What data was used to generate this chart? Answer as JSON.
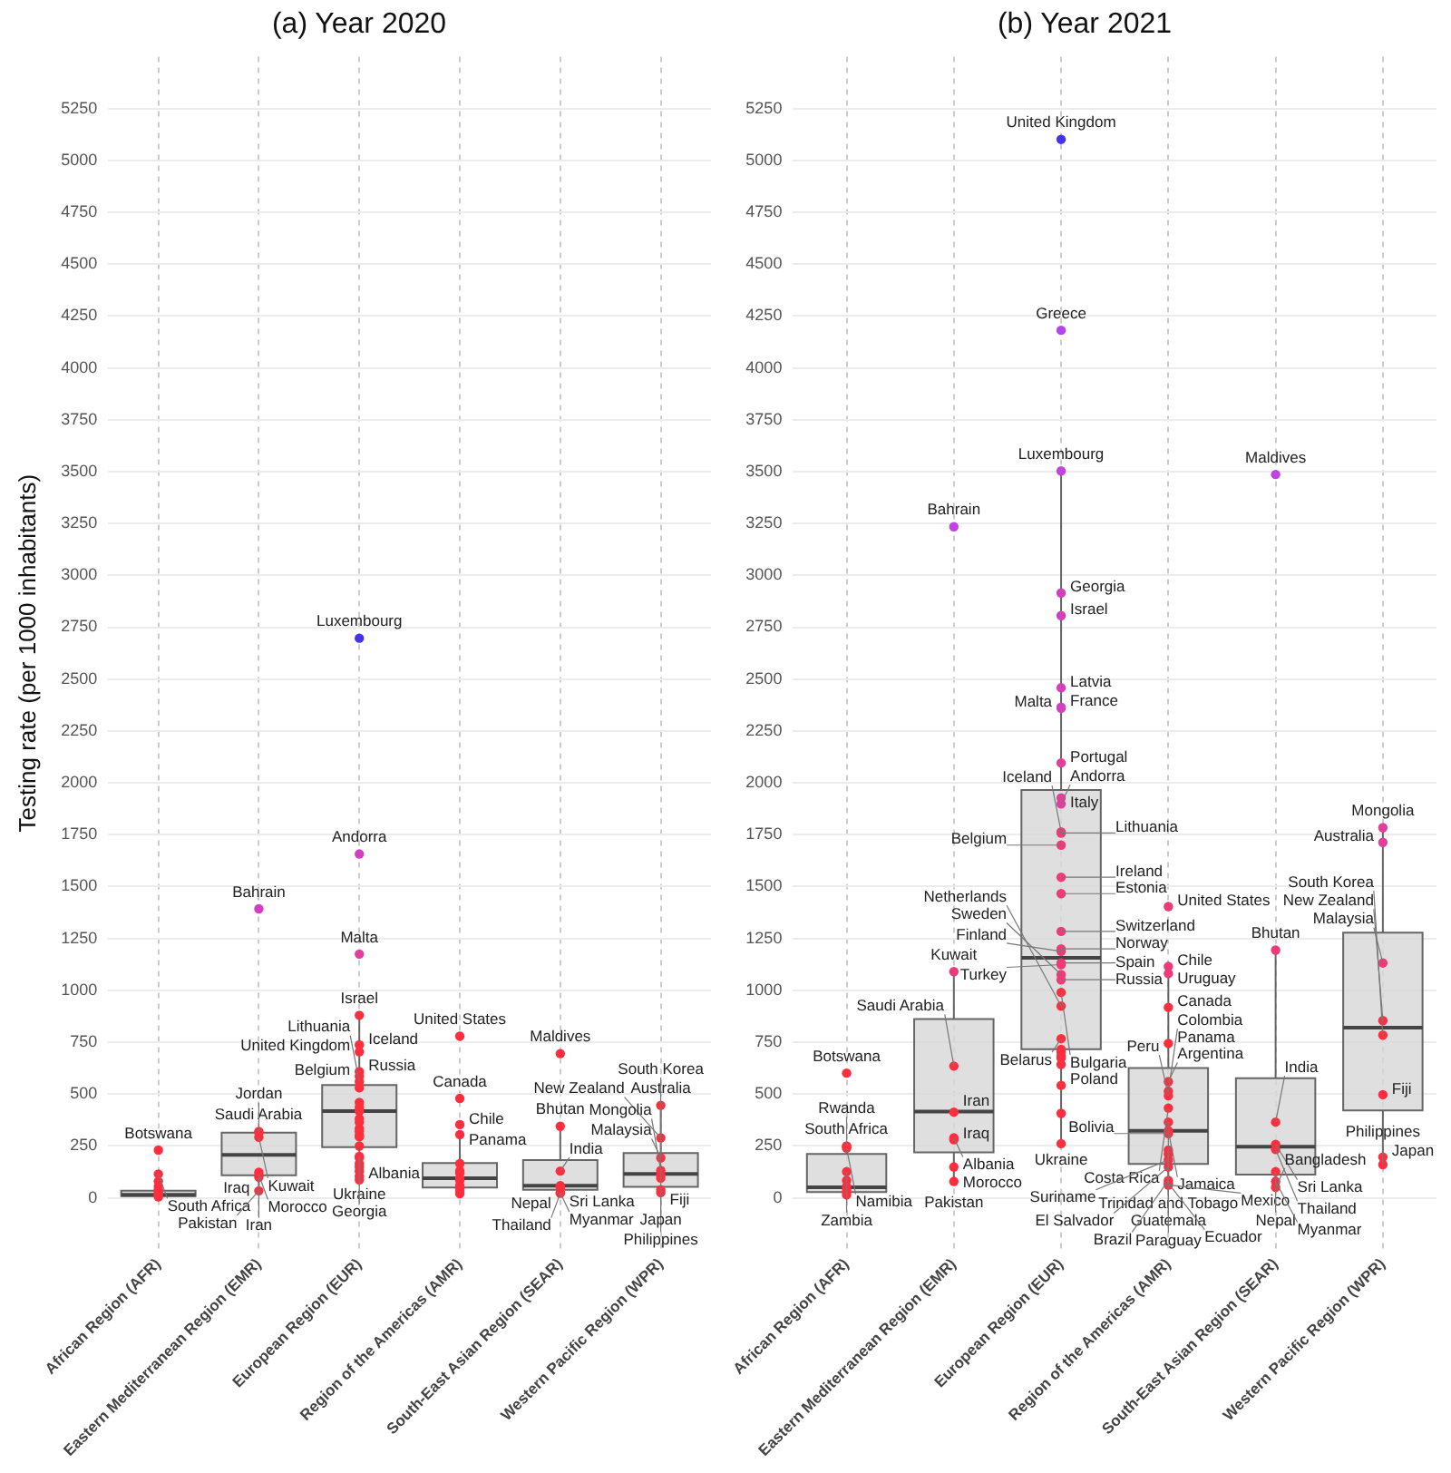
{
  "chart_data": [
    {
      "type": "box",
      "title": "(a) Year 2020",
      "ylabel": "Testing rate (per 1000 inhabitants)",
      "categories": [
        "African Region (AFR)",
        "Eastern Mediterranean Region (EMR)",
        "European Region (EUR)",
        "Region of the Americas (AMR)",
        "South-East Asian Region (SEAR)",
        "Western Pacific Region (WPR)"
      ],
      "boxes": [
        {
          "low": 2,
          "q1": 8,
          "median": 15,
          "q3": 34,
          "high": 60
        },
        {
          "low": 34,
          "q1": 109,
          "median": 207,
          "q3": 314,
          "high": 314
        },
        {
          "low": 87,
          "q1": 244,
          "median": 418,
          "q3": 544,
          "high": 880
        },
        {
          "low": 20,
          "q1": 50,
          "median": 95,
          "q3": 168,
          "high": 305
        },
        {
          "low": 22,
          "q1": 39,
          "median": 59,
          "q3": 182,
          "high": 345
        },
        {
          "low": 25,
          "q1": 53,
          "median": 115,
          "q3": 216,
          "high": 446
        }
      ],
      "series": [
        {
          "type": "scatter",
          "marker": "circle",
          "x": [
            "African Region (AFR)",
            "African Region (AFR)",
            "African Region (AFR)",
            "African Region (AFR)",
            "African Region (AFR)",
            "African Region (AFR)",
            "African Region (AFR)",
            "African Region (AFR)",
            "African Region (AFR)",
            "African Region (AFR)",
            "Eastern Mediterranean Region (EMR)",
            "Eastern Mediterranean Region (EMR)",
            "Eastern Mediterranean Region (EMR)",
            "Eastern Mediterranean Region (EMR)",
            "Eastern Mediterranean Region (EMR)",
            "Eastern Mediterranean Region (EMR)",
            "Eastern Mediterranean Region (EMR)",
            "Eastern Mediterranean Region (EMR)",
            "European Region (EUR)",
            "European Region (EUR)",
            "European Region (EUR)",
            "European Region (EUR)",
            "European Region (EUR)",
            "European Region (EUR)",
            "European Region (EUR)",
            "European Region (EUR)",
            "European Region (EUR)",
            "European Region (EUR)",
            "European Region (EUR)",
            "European Region (EUR)",
            "European Region (EUR)",
            "European Region (EUR)",
            "European Region (EUR)",
            "European Region (EUR)",
            "European Region (EUR)",
            "European Region (EUR)",
            "European Region (EUR)",
            "European Region (EUR)",
            "European Region (EUR)",
            "European Region (EUR)",
            "European Region (EUR)",
            "European Region (EUR)",
            "European Region (EUR)",
            "European Region (EUR)",
            "European Region (EUR)",
            "Region of the Americas (AMR)",
            "Region of the Americas (AMR)",
            "Region of the Americas (AMR)",
            "Region of the Americas (AMR)",
            "Region of the Americas (AMR)",
            "Region of the Americas (AMR)",
            "Region of the Americas (AMR)",
            "Region of the Americas (AMR)",
            "Region of the Americas (AMR)",
            "Region of the Americas (AMR)",
            "Region of the Americas (AMR)",
            "Region of the Americas (AMR)",
            "Region of the Americas (AMR)",
            "South-East Asian Region (SEAR)",
            "South-East Asian Region (SEAR)",
            "South-East Asian Region (SEAR)",
            "South-East Asian Region (SEAR)",
            "South-East Asian Region (SEAR)",
            "South-East Asian Region (SEAR)",
            "South-East Asian Region (SEAR)",
            "Western Pacific Region (WPR)",
            "Western Pacific Region (WPR)",
            "Western Pacific Region (WPR)",
            "Western Pacific Region (WPR)",
            "Western Pacific Region (WPR)",
            "Western Pacific Region (WPR)",
            "Western Pacific Region (WPR)",
            "Western Pacific Region (WPR)"
          ],
          "values": [
            230,
            115,
            80,
            55,
            40,
            30,
            20,
            15,
            10,
            5,
            1393,
            320,
            314,
            292,
            123,
            110,
            100,
            34,
            2697,
            1657,
            1175,
            880,
            737,
            704,
            608,
            586,
            560,
            530,
            460,
            437,
            418,
            381,
            364,
            334,
            320,
            300,
            294,
            250,
            200,
            193,
            165,
            149,
            129,
            104,
            87,
            779,
            479,
            353,
            305,
            165,
            130,
            120,
            95,
            85,
            60,
            45,
            30,
            20,
            695,
            345,
            129,
            59,
            48,
            25,
            22,
            446,
            289,
            193,
            132,
            110,
            95,
            25,
            39
          ],
          "colors": [
            "#ff2e3e",
            "#ff2e3e",
            "#ff2e3e",
            "#ff2e3e",
            "#ff2e3e",
            "#ff2e3e",
            "#ff2e3e",
            "#ff2e3e",
            "#ff2e3e",
            "#ff2e3e",
            "#d43fc0",
            "#ff2e3e",
            "#ff2e3e",
            "#ff2e3e",
            "#ff2e3e",
            "#ff2e3e",
            "#ff2e3e",
            "#ff2e3e",
            "#4433ee",
            "#d43fc0",
            "#e0409a",
            "#ff2e3e",
            "#ff2e3e",
            "#ff2e3e",
            "#ff2e3e",
            "#ff2e3e",
            "#ff2e3e",
            "#ff2e3e",
            "#ff2e3e",
            "#ff2e3e",
            "#ff2e3e",
            "#ff2e3e",
            "#ff2e3e",
            "#ff2e3e",
            "#ff2e3e",
            "#ff2e3e",
            "#ff2e3e",
            "#ff2e3e",
            "#ff2e3e",
            "#ff2e3e",
            "#ff2e3e",
            "#ff2e3e",
            "#ff2e3e",
            "#ff2e3e",
            "#ff2e3e",
            "#ff2e3e",
            "#ff2e3e",
            "#ff2e3e",
            "#ff2e3e",
            "#ff2e3e",
            "#ff2e3e",
            "#ff2e3e",
            "#ff2e3e",
            "#ff2e3e",
            "#ff2e3e",
            "#ff2e3e",
            "#ff2e3e",
            "#ff2e3e",
            "#ff2e3e",
            "#ff2e3e",
            "#ff2e3e",
            "#ff2e3e",
            "#ff2e3e",
            "#ff2e3e",
            "#ff2e3e",
            "#ff2e3e",
            "#ff2e3e",
            "#ff2e3e",
            "#ff2e3e",
            "#ff2e3e",
            "#ff2e3e",
            "#ff2e3e",
            "#ff2e3e"
          ]
        }
      ],
      "annotations": [
        {
          "text": "Botswana",
          "x": "African Region (AFR)",
          "y": 230
        },
        {
          "text": "South Africa",
          "x": "African Region (AFR)",
          "y": 115
        },
        {
          "text": "Bahrain",
          "x": "Eastern Mediterranean Region (EMR)",
          "y": 1393
        },
        {
          "text": "Saudi Arabia",
          "x": "Eastern Mediterranean Region (EMR)",
          "y": 320
        },
        {
          "text": "Jordan",
          "x": "Eastern Mediterranean Region (EMR)",
          "y": 314
        },
        {
          "text": "Kuwait",
          "x": "Eastern Mediterranean Region (EMR)",
          "y": 292
        },
        {
          "text": "Iraq",
          "x": "Eastern Mediterranean Region (EMR)",
          "y": 123
        },
        {
          "text": "Morocco",
          "x": "Eastern Mediterranean Region (EMR)",
          "y": 110
        },
        {
          "text": "Iran",
          "x": "Eastern Mediterranean Region (EMR)",
          "y": 100
        },
        {
          "text": "Pakistan",
          "x": "Eastern Mediterranean Region (EMR)",
          "y": 34
        },
        {
          "text": "Luxembourg",
          "x": "European Region (EUR)",
          "y": 2697
        },
        {
          "text": "Andorra",
          "x": "European Region (EUR)",
          "y": 1657
        },
        {
          "text": "Malta",
          "x": "European Region (EUR)",
          "y": 1175
        },
        {
          "text": "Israel",
          "x": "European Region (EUR)",
          "y": 880
        },
        {
          "text": "Iceland",
          "x": "European Region (EUR)",
          "y": 737
        },
        {
          "text": "United Kingdom",
          "x": "European Region (EUR)",
          "y": 704
        },
        {
          "text": "Russia",
          "x": "European Region (EUR)",
          "y": 608
        },
        {
          "text": "Belgium",
          "x": "European Region (EUR)",
          "y": 586
        },
        {
          "text": "Lithuania",
          "x": "European Region (EUR)",
          "y": 560
        },
        {
          "text": "Ukraine",
          "x": "European Region (EUR)",
          "y": 200
        },
        {
          "text": "Georgia",
          "x": "European Region (EUR)",
          "y": 193
        },
        {
          "text": "Albania",
          "x": "European Region (EUR)",
          "y": 87
        },
        {
          "text": "United States",
          "x": "Region of the Americas (AMR)",
          "y": 779
        },
        {
          "text": "Canada",
          "x": "Region of the Americas (AMR)",
          "y": 479
        },
        {
          "text": "Chile",
          "x": "Region of the Americas (AMR)",
          "y": 353
        },
        {
          "text": "Panama",
          "x": "Region of the Americas (AMR)",
          "y": 305
        },
        {
          "text": "Maldives",
          "x": "South-East Asian Region (SEAR)",
          "y": 695
        },
        {
          "text": "Bhutan",
          "x": "South-East Asian Region (SEAR)",
          "y": 345
        },
        {
          "text": "India",
          "x": "South-East Asian Region (SEAR)",
          "y": 129
        },
        {
          "text": "Sri Lanka",
          "x": "South-East Asian Region (SEAR)",
          "y": 59
        },
        {
          "text": "Nepal",
          "x": "South-East Asian Region (SEAR)",
          "y": 48
        },
        {
          "text": "Myanmar",
          "x": "South-East Asian Region (SEAR)",
          "y": 25
        },
        {
          "text": "Thailand",
          "x": "South-East Asian Region (SEAR)",
          "y": 22
        },
        {
          "text": "Australia",
          "x": "Western Pacific Region (WPR)",
          "y": 446
        },
        {
          "text": "New Zealand",
          "x": "Western Pacific Region (WPR)",
          "y": 289
        },
        {
          "text": "Malaysia",
          "x": "Western Pacific Region (WPR)",
          "y": 193
        },
        {
          "text": "Mongolia",
          "x": "Western Pacific Region (WPR)",
          "y": 132
        },
        {
          "text": "Philippines",
          "x": "Western Pacific Region (WPR)",
          "y": 110
        },
        {
          "text": "South Korea",
          "x": "Western Pacific Region (WPR)",
          "y": 95
        },
        {
          "text": "Fiji",
          "x": "Western Pacific Region (WPR)",
          "y": 39
        },
        {
          "text": "Japan",
          "x": "Western Pacific Region (WPR)",
          "y": 25
        }
      ],
      "ylim": [
        -250,
        5500
      ],
      "yticks": [
        0,
        250,
        500,
        750,
        1000,
        1250,
        1500,
        1750,
        2000,
        2250,
        2500,
        2750,
        3000,
        3250,
        3500,
        3750,
        4000,
        4250,
        4500,
        4750,
        5000,
        5250
      ],
      "grid": true,
      "legend": false
    },
    {
      "type": "box",
      "title": "(b) Year 2021",
      "categories": [
        "African Region (AFR)",
        "Eastern Mediterranean Region (EMR)",
        "European Region (EUR)",
        "Region of the Americas (AMR)",
        "South-East Asian Region (SEAR)",
        "Western Pacific Region (WPR)"
      ],
      "boxes": [
        {
          "low": 14,
          "q1": 28,
          "median": 51,
          "q3": 211,
          "high": 250
        },
        {
          "low": 79,
          "q1": 219,
          "median": 416,
          "q3": 862,
          "high": 1090
        },
        {
          "low": 261,
          "q1": 716,
          "median": 1157,
          "q3": 1966,
          "high": 3503
        },
        {
          "low": 62,
          "q1": 163,
          "median": 323,
          "q3": 626,
          "high": 1115
        },
        {
          "low": 51,
          "q1": 112,
          "median": 247,
          "q3": 576,
          "high": 1194
        },
        {
          "low": 160,
          "q1": 421,
          "median": 820,
          "q3": 1278,
          "high": 1784
        }
      ],
      "series": [
        {
          "type": "scatter",
          "marker": "circle",
          "x": [
            "African Region (AFR)",
            "African Region (AFR)",
            "African Region (AFR)",
            "African Region (AFR)",
            "African Region (AFR)",
            "African Region (AFR)",
            "African Region (AFR)",
            "African Region (AFR)",
            "African Region (AFR)",
            "African Region (AFR)",
            "Eastern Mediterranean Region (EMR)",
            "Eastern Mediterranean Region (EMR)",
            "Eastern Mediterranean Region (EMR)",
            "Eastern Mediterranean Region (EMR)",
            "Eastern Mediterranean Region (EMR)",
            "Eastern Mediterranean Region (EMR)",
            "Eastern Mediterranean Region (EMR)",
            "Eastern Mediterranean Region (EMR)",
            "European Region (EUR)",
            "European Region (EUR)",
            "European Region (EUR)",
            "European Region (EUR)",
            "European Region (EUR)",
            "European Region (EUR)",
            "European Region (EUR)",
            "European Region (EUR)",
            "European Region (EUR)",
            "European Region (EUR)",
            "European Region (EUR)",
            "European Region (EUR)",
            "European Region (EUR)",
            "European Region (EUR)",
            "European Region (EUR)",
            "European Region (EUR)",
            "European Region (EUR)",
            "European Region (EUR)",
            "European Region (EUR)",
            "European Region (EUR)",
            "European Region (EUR)",
            "European Region (EUR)",
            "European Region (EUR)",
            "European Region (EUR)",
            "European Region (EUR)",
            "European Region (EUR)",
            "European Region (EUR)",
            "European Region (EUR)",
            "European Region (EUR)",
            "European Region (EUR)",
            "European Region (EUR)",
            "European Region (EUR)",
            "European Region (EUR)",
            "European Region (EUR)",
            "Region of the Americas (AMR)",
            "Region of the Americas (AMR)",
            "Region of the Americas (AMR)",
            "Region of the Americas (AMR)",
            "Region of the Americas (AMR)",
            "Region of the Americas (AMR)",
            "Region of the Americas (AMR)",
            "Region of the Americas (AMR)",
            "Region of the Americas (AMR)",
            "Region of the Americas (AMR)",
            "Region of the Americas (AMR)",
            "Region of the Americas (AMR)",
            "Region of the Americas (AMR)",
            "Region of the Americas (AMR)",
            "Region of the Americas (AMR)",
            "Region of the Americas (AMR)",
            "Region of the Americas (AMR)",
            "Region of the Americas (AMR)",
            "Region of the Americas (AMR)",
            "South-East Asian Region (SEAR)",
            "South-East Asian Region (SEAR)",
            "South-East Asian Region (SEAR)",
            "South-East Asian Region (SEAR)",
            "South-East Asian Region (SEAR)",
            "South-East Asian Region (SEAR)",
            "South-East Asian Region (SEAR)",
            "South-East Asian Region (SEAR)",
            "Western Pacific Region (WPR)",
            "Western Pacific Region (WPR)",
            "Western Pacific Region (WPR)",
            "Western Pacific Region (WPR)",
            "Western Pacific Region (WPR)",
            "Western Pacific Region (WPR)",
            "Western Pacific Region (WPR)",
            "Western Pacific Region (WPR)"
          ],
          "values": [
            601,
            250,
            247,
            240,
            126,
            84,
            56,
            42,
            28,
            14,
            3234,
            1090,
            635,
            413,
            289,
            280,
            149,
            79,
            5101,
            4181,
            3503,
            2915,
            2806,
            2458,
            2365,
            2360,
            2096,
            1927,
            1899,
            1764,
            1758,
            1700,
            1545,
            1466,
            1284,
            1200,
            1188,
            1132,
            1124,
            1076,
            1051,
            990,
            924,
            767,
            716,
            702,
            683,
            674,
            643,
            542,
            407,
            261,
            1404,
            1115,
            1081,
            918,
            744,
            560,
            514,
            492,
            433,
            365,
            323,
            310,
            230,
            211,
            183,
            149,
            84,
            70,
            62,
            3486,
            1194,
            365,
            258,
            233,
            126,
            79,
            51,
            1784,
            1713,
            1132,
            854,
            784,
            497,
            197,
            160
          ],
          "colors": [
            "#ff2e3e",
            "#ff2e3e",
            "#ff2e3e",
            "#ff2e3e",
            "#ff2e3e",
            "#ff2e3e",
            "#ff2e3e",
            "#ff2e3e",
            "#ff2e3e",
            "#ff2e3e",
            "#c044e0",
            "#ee3a78",
            "#ff2e3e",
            "#ff2e3e",
            "#ff2e3e",
            "#ff2e3e",
            "#ff2e3e",
            "#ff2e3e",
            "#4433ee",
            "#b044ee",
            "#c044e0",
            "#d43fc0",
            "#d43fc0",
            "#d43fc0",
            "#d43fc0",
            "#d43fc0",
            "#e0409a",
            "#e0409a",
            "#e0409a",
            "#ee3a78",
            "#ee3a78",
            "#ee3a78",
            "#ee3a78",
            "#ee3a78",
            "#ee3a78",
            "#ee3a78",
            "#ee3a78",
            "#ee3a78",
            "#ee3a78",
            "#ee3a78",
            "#ee3a78",
            "#ff2e3e",
            "#ff2e3e",
            "#ff2e3e",
            "#ff2e3e",
            "#ff2e3e",
            "#ff2e3e",
            "#ff2e3e",
            "#ff2e3e",
            "#ff2e3e",
            "#ff2e3e",
            "#ff2e3e",
            "#ee3a78",
            "#ee3a78",
            "#ee3a78",
            "#ff2e3e",
            "#ff2e3e",
            "#ff2e3e",
            "#ff2e3e",
            "#ff2e3e",
            "#ff2e3e",
            "#ff2e3e",
            "#ff2e3e",
            "#ff2e3e",
            "#ff2e3e",
            "#ff2e3e",
            "#ff2e3e",
            "#ff2e3e",
            "#ff2e3e",
            "#ff2e3e",
            "#ff2e3e",
            "#c044e0",
            "#ee3a78",
            "#ff2e3e",
            "#ff2e3e",
            "#ff2e3e",
            "#ff2e3e",
            "#ff2e3e",
            "#ff2e3e",
            "#e0409a",
            "#e0409a",
            "#ee3a78",
            "#ff2e3e",
            "#ff2e3e",
            "#ff2e3e",
            "#ff2e3e",
            "#ff2e3e"
          ]
        }
      ],
      "annotations": [
        {
          "text": "Botswana",
          "x": "African Region (AFR)",
          "y": 601
        },
        {
          "text": "South Africa",
          "x": "African Region (AFR)",
          "y": 250
        },
        {
          "text": "Rwanda",
          "x": "African Region (AFR)",
          "y": 247
        },
        {
          "text": "Namibia",
          "x": "African Region (AFR)",
          "y": 240
        },
        {
          "text": "Zambia",
          "x": "African Region (AFR)",
          "y": 126
        },
        {
          "text": "Bahrain",
          "x": "Eastern Mediterranean Region (EMR)",
          "y": 3234
        },
        {
          "text": "Kuwait",
          "x": "Eastern Mediterranean Region (EMR)",
          "y": 1090
        },
        {
          "text": "Saudi Arabia",
          "x": "Eastern Mediterranean Region (EMR)",
          "y": 635
        },
        {
          "text": "Iran",
          "x": "Eastern Mediterranean Region (EMR)",
          "y": 413
        },
        {
          "text": "Albania",
          "x": "Eastern Mediterranean Region (EMR)",
          "y": 289
        },
        {
          "text": "Iraq",
          "x": "Eastern Mediterranean Region (EMR)",
          "y": 280
        },
        {
          "text": "Morocco",
          "x": "Eastern Mediterranean Region (EMR)",
          "y": 149
        },
        {
          "text": "Pakistan",
          "x": "Eastern Mediterranean Region (EMR)",
          "y": 79
        },
        {
          "text": "United Kingdom",
          "x": "European Region (EUR)",
          "y": 5101
        },
        {
          "text": "Greece",
          "x": "European Region (EUR)",
          "y": 4181
        },
        {
          "text": "Luxembourg",
          "x": "European Region (EUR)",
          "y": 3503
        },
        {
          "text": "Georgia",
          "x": "European Region (EUR)",
          "y": 2915
        },
        {
          "text": "Israel",
          "x": "European Region (EUR)",
          "y": 2806
        },
        {
          "text": "Latvia",
          "x": "European Region (EUR)",
          "y": 2458
        },
        {
          "text": "France",
          "x": "European Region (EUR)",
          "y": 2365
        },
        {
          "text": "Malta",
          "x": "European Region (EUR)",
          "y": 2360
        },
        {
          "text": "Portugal",
          "x": "European Region (EUR)",
          "y": 2096
        },
        {
          "text": "Italy",
          "x": "European Region (EUR)",
          "y": 1927
        },
        {
          "text": "Andorra",
          "x": "European Region (EUR)",
          "y": 1899
        },
        {
          "text": "Iceland",
          "x": "European Region (EUR)",
          "y": 1764
        },
        {
          "text": "Lithuania",
          "x": "European Region (EUR)",
          "y": 1758
        },
        {
          "text": "Belgium",
          "x": "European Region (EUR)",
          "y": 1700
        },
        {
          "text": "Ireland",
          "x": "European Region (EUR)",
          "y": 1545
        },
        {
          "text": "Estonia",
          "x": "European Region (EUR)",
          "y": 1466
        },
        {
          "text": "Switzerland",
          "x": "European Region (EUR)",
          "y": 1284
        },
        {
          "text": "Norway",
          "x": "European Region (EUR)",
          "y": 1200
        },
        {
          "text": "Finland",
          "x": "European Region (EUR)",
          "y": 1188
        },
        {
          "text": "Spain",
          "x": "European Region (EUR)",
          "y": 1132
        },
        {
          "text": "Turkey",
          "x": "European Region (EUR)",
          "y": 1124
        },
        {
          "text": "Sweden",
          "x": "European Region (EUR)",
          "y": 1076
        },
        {
          "text": "Russia",
          "x": "European Region (EUR)",
          "y": 1051
        },
        {
          "text": "Bulgaria",
          "x": "European Region (EUR)",
          "y": 990
        },
        {
          "text": "Netherlands",
          "x": "European Region (EUR)",
          "y": 924
        },
        {
          "text": "Belarus",
          "x": "European Region (EUR)",
          "y": 767
        },
        {
          "text": "Poland",
          "x": "European Region (EUR)",
          "y": 542
        },
        {
          "text": "Ukraine",
          "x": "European Region (EUR)",
          "y": 261
        },
        {
          "text": "United States",
          "x": "Region of the Americas (AMR)",
          "y": 1404
        },
        {
          "text": "Chile",
          "x": "Region of the Americas (AMR)",
          "y": 1115
        },
        {
          "text": "Uruguay",
          "x": "Region of the Americas (AMR)",
          "y": 1081
        },
        {
          "text": "Canada",
          "x": "Region of the Americas (AMR)",
          "y": 918
        },
        {
          "text": "Panama",
          "x": "Region of the Americas (AMR)",
          "y": 744
        },
        {
          "text": "Argentina",
          "x": "Region of the Americas (AMR)",
          "y": 560
        },
        {
          "text": "Colombia",
          "x": "Region of the Americas (AMR)",
          "y": 514
        },
        {
          "text": "Peru",
          "x": "Region of the Americas (AMR)",
          "y": 492
        },
        {
          "text": "Costa Rica",
          "x": "Region of the Americas (AMR)",
          "y": 433
        },
        {
          "text": "Trinidad and Tobago",
          "x": "Region of the Americas (AMR)",
          "y": 365
        },
        {
          "text": "Jamaica",
          "x": "Region of the Americas (AMR)",
          "y": 323
        },
        {
          "text": "Bolivia",
          "x": "Region of the Americas (AMR)",
          "y": 310
        },
        {
          "text": "Guatemala",
          "x": "Region of the Americas (AMR)",
          "y": 230
        },
        {
          "text": "Paraguay",
          "x": "Region of the Americas (AMR)",
          "y": 211
        },
        {
          "text": "Suriname",
          "x": "Region of the Americas (AMR)",
          "y": 183
        },
        {
          "text": "El Salvador",
          "x": "Region of the Americas (AMR)",
          "y": 149
        },
        {
          "text": "Brazil",
          "x": "Region of the Americas (AMR)",
          "y": 84
        },
        {
          "text": "Ecuador",
          "x": "Region of the Americas (AMR)",
          "y": 70
        },
        {
          "text": "Mexico",
          "x": "Region of the Americas (AMR)",
          "y": 62
        },
        {
          "text": "Maldives",
          "x": "South-East Asian Region (SEAR)",
          "y": 3486
        },
        {
          "text": "Bhutan",
          "x": "South-East Asian Region (SEAR)",
          "y": 1194
        },
        {
          "text": "India",
          "x": "South-East Asian Region (SEAR)",
          "y": 365
        },
        {
          "text": "Sri Lanka",
          "x": "South-East Asian Region (SEAR)",
          "y": 258
        },
        {
          "text": "Thailand",
          "x": "South-East Asian Region (SEAR)",
          "y": 233
        },
        {
          "text": "Nepal",
          "x": "South-East Asian Region (SEAR)",
          "y": 126
        },
        {
          "text": "Myanmar",
          "x": "South-East Asian Region (SEAR)",
          "y": 79
        },
        {
          "text": "Bangladesh",
          "x": "South-East Asian Region (SEAR)",
          "y": 51
        },
        {
          "text": "Mongolia",
          "x": "Western Pacific Region (WPR)",
          "y": 1784
        },
        {
          "text": "Australia",
          "x": "Western Pacific Region (WPR)",
          "y": 1713
        },
        {
          "text": "Malaysia",
          "x": "Western Pacific Region (WPR)",
          "y": 1132
        },
        {
          "text": "New Zealand",
          "x": "Western Pacific Region (WPR)",
          "y": 854
        },
        {
          "text": "South Korea",
          "x": "Western Pacific Region (WPR)",
          "y": 784
        },
        {
          "text": "Fiji",
          "x": "Western Pacific Region (WPR)",
          "y": 497
        },
        {
          "text": "Japan",
          "x": "Western Pacific Region (WPR)",
          "y": 197
        },
        {
          "text": "Philippines",
          "x": "Western Pacific Region (WPR)",
          "y": 160
        }
      ],
      "ylim": [
        -250,
        5500
      ],
      "yticks": [
        0,
        250,
        500,
        750,
        1000,
        1250,
        1500,
        1750,
        2000,
        2250,
        2500,
        2750,
        3000,
        3250,
        3500,
        3750,
        4000,
        4250,
        4500,
        4750,
        5000,
        5250
      ],
      "grid": true,
      "legend": false
    }
  ]
}
